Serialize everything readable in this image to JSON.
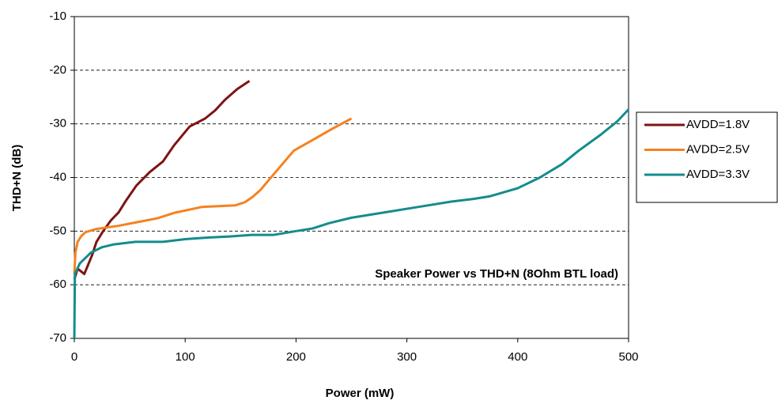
{
  "chart_data": {
    "type": "line",
    "xlabel": "Power (mW)",
    "ylabel": "THD+N (dB)",
    "annotation": "Speaker Power vs THD+N (8Ohm BTL load)",
    "xlim": [
      0,
      500
    ],
    "xticks": [
      0,
      100,
      200,
      300,
      400,
      500
    ],
    "ylim": [
      -70,
      -10
    ],
    "yticks": [
      -70,
      -60,
      -50,
      -40,
      -30,
      -20,
      -10
    ],
    "grid": true,
    "legend": "right",
    "series": [
      {
        "name": "AVDD=1.8V",
        "color": "#7f1414",
        "x": [
          0,
          3,
          6,
          9,
          12,
          16,
          20,
          26,
          33,
          40,
          46,
          56,
          68,
          80,
          90,
          104,
          118,
          127,
          136,
          147,
          158
        ],
        "values": [
          -59,
          -57,
          -57.5,
          -58,
          -56.5,
          -54.5,
          -52,
          -50,
          -48,
          -46.5,
          -44.5,
          -41.5,
          -39,
          -37,
          -34,
          -30.5,
          -29,
          -27.5,
          -25.5,
          -23.5,
          -22
        ]
      },
      {
        "name": "AVDD=2.5V",
        "color": "#f5821f",
        "x": [
          0,
          1,
          3,
          6,
          10,
          20,
          40,
          60,
          75,
          90,
          115,
          145,
          154,
          161,
          168,
          179,
          198,
          215,
          232,
          250
        ],
        "values": [
          -58,
          -54,
          -52,
          -51,
          -50.2,
          -49.6,
          -49,
          -48.2,
          -47.6,
          -46.6,
          -45.5,
          -45.2,
          -44.6,
          -43.6,
          -42.3,
          -39.6,
          -35,
          -33,
          -31,
          -29
        ]
      },
      {
        "name": "AVDD=3.3V",
        "color": "#148c8c",
        "x": [
          0,
          0.5,
          5,
          15,
          25,
          35,
          55,
          80,
          100,
          120,
          140,
          160,
          180,
          200,
          215,
          230,
          250,
          280,
          310,
          340,
          360,
          375,
          400,
          420,
          440,
          455,
          475,
          490,
          500
        ],
        "values": [
          -70,
          -58,
          -56,
          -54,
          -53,
          -52.5,
          -52,
          -52,
          -51.5,
          -51.2,
          -51,
          -50.7,
          -50.7,
          -50,
          -49.5,
          -48.5,
          -47.5,
          -46.5,
          -45.5,
          -44.5,
          -44,
          -43.5,
          -42,
          -40,
          -37.5,
          -35,
          -32,
          -29.5,
          -27.3
        ]
      }
    ]
  }
}
